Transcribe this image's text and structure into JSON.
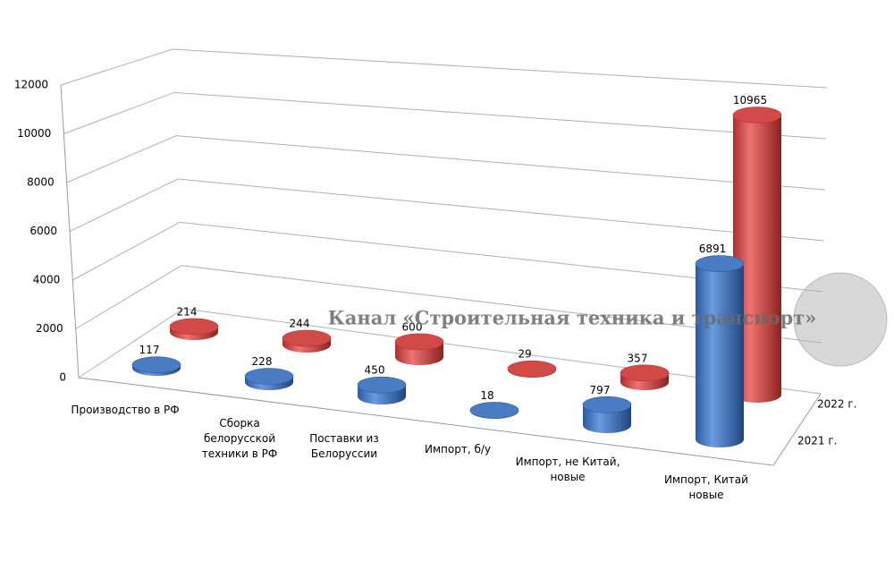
{
  "chart_data": {
    "type": "bar3d",
    "categories": [
      "Производство в РФ",
      "Сборка белорусской техники в РФ",
      "Поставки из Белоруссии",
      "Импорт, б/у",
      "Импорт, не Китай, новые",
      "Импорт, Китай новые"
    ],
    "series": [
      {
        "name": "2021 г.",
        "color": "#4a7cc4",
        "values": [
          117,
          228,
          450,
          18,
          797,
          6891
        ]
      },
      {
        "name": "2022 г.",
        "color": "#d24a48",
        "values": [
          214,
          244,
          600,
          29,
          357,
          10965
        ]
      }
    ],
    "ylim": [
      0,
      12000
    ],
    "yticks": [
      0,
      2000,
      4000,
      6000,
      8000,
      10000,
      12000
    ],
    "grid": true,
    "annotation": "Канал «Строительная техника и транспорт»"
  }
}
